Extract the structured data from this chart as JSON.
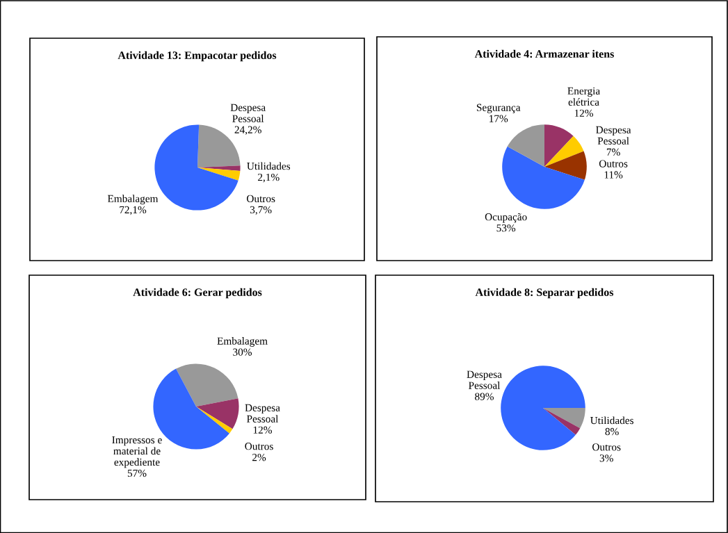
{
  "chart_data": [
    {
      "type": "pie",
      "title": "Atividade 13: Empacotar pedidos",
      "categories": [
        "Despesa\nPessoal",
        "Utilidades",
        "Outros",
        "Embalagem"
      ],
      "values": [
        24.2,
        2.1,
        3.7,
        72.1
      ],
      "value_labels": [
        "24,2%",
        "2,1%",
        "3,7%",
        "72,1%"
      ],
      "colors": [
        "#999999",
        "#993366",
        "#ffcc00",
        "#3366ff"
      ]
    },
    {
      "type": "pie",
      "title": "Atividade 4: Armazenar itens",
      "categories": [
        "Energia\nelétrica",
        "Despesa\nPessoal",
        "Outros",
        "Ocupação",
        "Segurança"
      ],
      "values": [
        12,
        7,
        11,
        53,
        17
      ],
      "value_labels": [
        "12%",
        "7%",
        "11%",
        "53%",
        "17%"
      ],
      "colors": [
        "#993366",
        "#ffcc00",
        "#993300",
        "#3366ff",
        "#999999"
      ]
    },
    {
      "type": "pie",
      "title": "Atividade 6: Gerar pedidos",
      "categories": [
        "Embalagem",
        "Despesa\nPessoal",
        "Outros",
        "Impressos e\nmaterial de\nexpediente"
      ],
      "values": [
        30,
        12,
        2,
        57
      ],
      "value_labels": [
        "30%",
        "12%",
        "2%",
        "57%"
      ],
      "colors": [
        "#999999",
        "#993366",
        "#ffcc00",
        "#3366ff"
      ]
    },
    {
      "type": "pie",
      "title": "Atividade 8: Separar pedidos",
      "categories": [
        "Utilidades",
        "Outros",
        "Despesa\nPessoal"
      ],
      "values": [
        8,
        3,
        89
      ],
      "value_labels": [
        "8%",
        "3%",
        "89%"
      ],
      "colors": [
        "#999999",
        "#993366",
        "#3366ff"
      ]
    }
  ]
}
